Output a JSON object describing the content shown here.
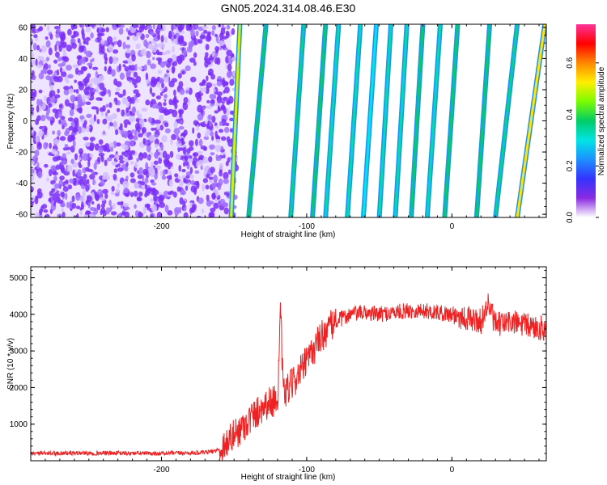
{
  "figure": {
    "title": "GN05.2024.314.08.46.E30"
  },
  "chart_data": [
    {
      "type": "heatmap",
      "title": "GN05.2024.314.08.46.E30",
      "xlabel": "Height of straight line (km)",
      "ylabel": "Frequency (Hz)",
      "xlim": [
        -290,
        65
      ],
      "ylim": [
        -62,
        62
      ],
      "xticks": [
        -200,
        -100,
        0
      ],
      "yticks": [
        -60,
        -40,
        -20,
        0,
        20,
        40,
        60
      ],
      "colorbar": {
        "label": "Normalized spectral amplitude",
        "range": [
          0,
          0.75
        ],
        "ticks": [
          0.0,
          0.2,
          0.4,
          0.6
        ],
        "colors": [
          "#ffffff",
          "#8a2be2",
          "#3333ff",
          "#1e90ff",
          "#00e5e5",
          "#00cc66",
          "#7cfc00",
          "#ffee00",
          "#ff8800",
          "#ff0000",
          "#ff3399"
        ]
      },
      "noise_region": {
        "x_range": [
          -290,
          -152
        ],
        "color": "#7b2ff7"
      },
      "stripes": [
        {
          "x_bottom": -152,
          "x_top": -146,
          "level": 0.35
        },
        {
          "x_bottom": -140,
          "x_top": -128,
          "level": 0.22
        },
        {
          "x_bottom": -111,
          "x_top": -102,
          "level": 0.2
        },
        {
          "x_bottom": -96,
          "x_top": -87,
          "level": 0.22
        },
        {
          "x_bottom": -87,
          "x_top": -78,
          "level": 0.18
        },
        {
          "x_bottom": -72,
          "x_top": -63,
          "level": 0.18
        },
        {
          "x_bottom": -61,
          "x_top": -52,
          "level": 0.15
        },
        {
          "x_bottom": -50,
          "x_top": -42,
          "level": 0.18
        },
        {
          "x_bottom": -39,
          "x_top": -31,
          "level": 0.18
        },
        {
          "x_bottom": -28,
          "x_top": -20,
          "level": 0.22
        },
        {
          "x_bottom": -17,
          "x_top": -8,
          "level": 0.18
        },
        {
          "x_bottom": -5,
          "x_top": 4,
          "level": 0.22
        },
        {
          "x_bottom": 17,
          "x_top": 26,
          "level": 0.22
        },
        {
          "x_bottom": 30,
          "x_top": 45,
          "level": 0.2
        },
        {
          "x_bottom": 45,
          "x_top": 64,
          "level": 0.38
        }
      ]
    },
    {
      "type": "line",
      "xlabel": "Height of straight line (km)",
      "ylabel": "SNR (10 * v/v)",
      "xlim": [
        -290,
        65
      ],
      "ylim": [
        0,
        5300
      ],
      "xticks": [
        -200,
        -100,
        0
      ],
      "yticks": [
        1000,
        2000,
        3000,
        4000,
        5000
      ],
      "color": "#ee2222",
      "series": [
        {
          "x": [
            -290,
            -260,
            -230,
            -200,
            -170,
            -160,
            -150,
            -140,
            -130,
            -120,
            -118,
            -116,
            -110,
            -100,
            -90,
            -80,
            -70,
            -60,
            -50,
            -40,
            -30,
            -20,
            -10,
            0,
            10,
            20,
            25,
            30,
            40,
            50,
            65
          ],
          "values": [
            200,
            210,
            205,
            200,
            220,
            300,
            700,
            1100,
            1500,
            1700,
            4000,
            1800,
            2100,
            2700,
            3400,
            3800,
            4000,
            4050,
            4000,
            4050,
            4100,
            4100,
            4050,
            4000,
            3900,
            3800,
            4300,
            3700,
            3800,
            3700,
            3600
          ]
        }
      ]
    }
  ]
}
